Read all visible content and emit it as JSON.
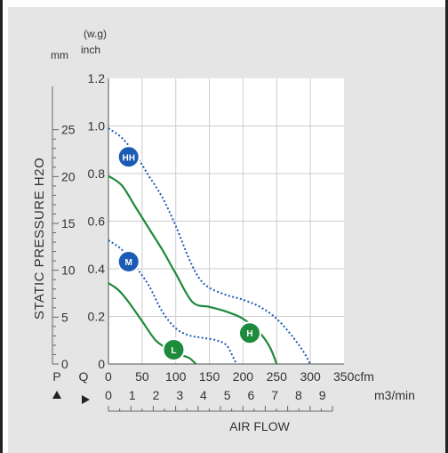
{
  "chart_data": {
    "type": "line",
    "ylabel": "STATIC PRESSURE H2O",
    "xlabel": "AIR FLOW",
    "y_units": {
      "mm": "mm",
      "inch": "(w.g)",
      "inch2": "inch"
    },
    "y_inch_ticks": [
      "1.2",
      "1.0",
      "0.8",
      "0.6",
      "0.4",
      "0.2",
      "0"
    ],
    "y_mm_ticks": [
      "25",
      "20",
      "15",
      "10",
      "5",
      "0"
    ],
    "x_cfm_ticks": [
      "0",
      "50",
      "100",
      "150",
      "200",
      "250",
      "300",
      "350cfm"
    ],
    "x_m3_ticks": [
      "0",
      "1",
      "2",
      "3",
      "4",
      "5",
      "6",
      "7",
      "8",
      "9",
      "m3/min"
    ],
    "axis_letters": {
      "p": "P",
      "q": "Q"
    },
    "ylim_inch": [
      0,
      1.2
    ],
    "xlim_cfm": [
      0,
      350
    ],
    "grid": true,
    "series": [
      {
        "key": "hh",
        "label": "HH",
        "style": "dotted",
        "color": "#1a5bb5",
        "x": [
          0,
          20,
          40,
          60,
          80,
          100,
          120,
          135,
          150,
          175,
          200,
          225,
          250,
          275,
          290,
          300
        ],
        "y": [
          0.99,
          0.95,
          0.88,
          0.79,
          0.7,
          0.58,
          0.44,
          0.36,
          0.32,
          0.29,
          0.27,
          0.24,
          0.19,
          0.11,
          0.05,
          0
        ]
      },
      {
        "key": "h",
        "label": "H",
        "style": "solid",
        "color": "#1e8a3c",
        "x": [
          0,
          20,
          40,
          60,
          80,
          100,
          125,
          150,
          175,
          200,
          225,
          240,
          250
        ],
        "y": [
          0.79,
          0.75,
          0.66,
          0.57,
          0.48,
          0.38,
          0.26,
          0.24,
          0.22,
          0.19,
          0.13,
          0.07,
          0
        ]
      },
      {
        "key": "m",
        "label": "M",
        "style": "dotted",
        "color": "#1a5bb5",
        "x": [
          0,
          20,
          40,
          60,
          80,
          100,
          120,
          140,
          160,
          175,
          185,
          190
        ],
        "y": [
          0.52,
          0.48,
          0.41,
          0.33,
          0.22,
          0.15,
          0.12,
          0.11,
          0.1,
          0.08,
          0.03,
          0
        ]
      },
      {
        "key": "l",
        "label": "L",
        "style": "solid",
        "color": "#1e8a3c",
        "x": [
          0,
          15,
          30,
          50,
          70,
          90,
          105,
          120,
          130
        ],
        "y": [
          0.34,
          0.31,
          0.26,
          0.18,
          0.1,
          0.06,
          0.04,
          0.025,
          0
        ]
      }
    ],
    "badges": [
      {
        "key": "hh",
        "label": "HH",
        "color": "#1a5bb5",
        "x": 30,
        "y": 0.87
      },
      {
        "key": "m",
        "label": "M",
        "color": "#1a5bb5",
        "x": 30,
        "y": 0.43
      },
      {
        "key": "h",
        "label": "H",
        "color": "#1e8a3c",
        "x": 210,
        "y": 0.13
      },
      {
        "key": "l",
        "label": "L",
        "color": "#1e8a3c",
        "x": 97,
        "y": 0.06
      }
    ]
  }
}
